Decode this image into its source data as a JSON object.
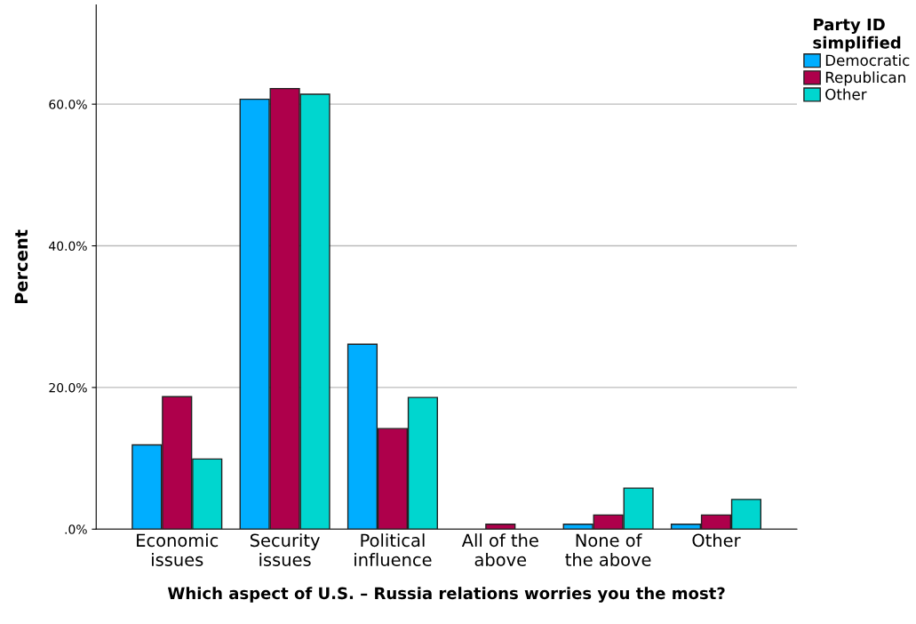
{
  "chart_data": {
    "type": "bar",
    "xlabel": "Which aspect of U.S. – Russia relations worries you the most?",
    "ylabel": "Percent",
    "legend_title": "Party ID\nsimplified",
    "categories": [
      "Economic\nissues",
      "Security\nissues",
      "Political\ninfluence",
      "All of the\nabove",
      "None of\nthe above",
      "Other"
    ],
    "series": [
      {
        "name": "Democratic",
        "color": "#00aeff",
        "values": [
          11.9,
          60.7,
          26.1,
          null,
          0.7,
          0.7
        ]
      },
      {
        "name": "Republican",
        "color": "#ae004b",
        "values": [
          18.7,
          62.2,
          14.2,
          0.7,
          2.0,
          2.0
        ]
      },
      {
        "name": "Other",
        "color": "#00d6cf",
        "values": [
          9.9,
          61.4,
          18.6,
          null,
          5.8,
          4.2
        ]
      }
    ],
    "ylim": [
      0,
      74
    ],
    "yticks": [
      {
        "value": 0,
        "label": ".0%"
      },
      {
        "value": 20,
        "label": "20.0%"
      },
      {
        "value": 40,
        "label": "40.0%"
      },
      {
        "value": 60,
        "label": "60.0%"
      }
    ],
    "grid": "y",
    "legend": "top right"
  }
}
